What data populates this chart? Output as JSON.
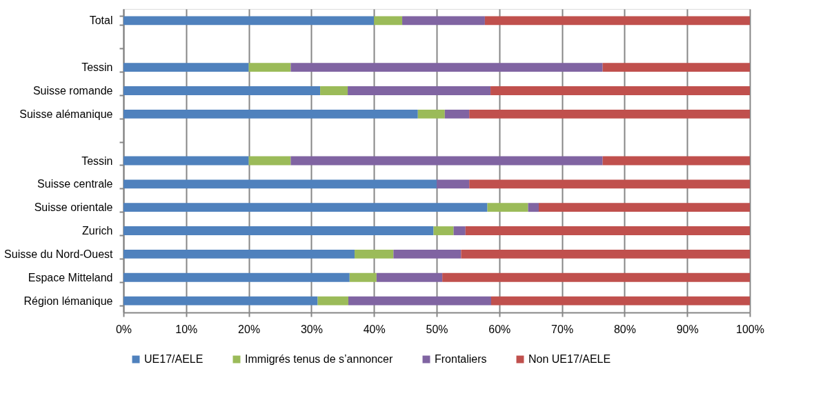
{
  "chart_data": {
    "type": "bar",
    "orientation": "horizontal",
    "stacked": true,
    "categories": [
      "Total",
      null,
      "Tessin",
      "Suisse romande",
      "Suisse alémanique",
      null,
      "Tessin",
      "Suisse centrale",
      "Suisse orientale",
      "Zurich",
      "Suisse du Nord-Ouest",
      "Espace Mitteland",
      "Région lémanique"
    ],
    "series": [
      {
        "name": "UE17/AELE",
        "color": "#4f81bd",
        "values": [
          40,
          null,
          20,
          31.4,
          47,
          null,
          20,
          50,
          58.1,
          49.5,
          36.9,
          36.1,
          31
        ]
      },
      {
        "name": "Immigrés tenus de s’annoncer",
        "color": "#9bbb59",
        "values": [
          4.5,
          null,
          6.7,
          4.4,
          4.3,
          null,
          6.7,
          0,
          6.5,
          3.2,
          6.2,
          4.3,
          4.9
        ]
      },
      {
        "name": "Frontaliers",
        "color": "#8064a2",
        "values": [
          13.2,
          null,
          49.8,
          22.8,
          3.9,
          null,
          49.8,
          5.2,
          1.7,
          1.9,
          10.8,
          10.5,
          22.8
        ]
      },
      {
        "name": "Non UE17/AELE",
        "color": "#c0504d",
        "values": [
          42.3,
          null,
          23.5,
          41.4,
          44.8,
          null,
          23.5,
          44.8,
          33.7,
          45.4,
          46.1,
          49.1,
          41.3
        ]
      }
    ],
    "xlim": [
      0,
      100
    ],
    "xticks": [
      {
        "value": 0,
        "label": "0%"
      },
      {
        "value": 10,
        "label": "10%"
      },
      {
        "value": 20,
        "label": "20%"
      },
      {
        "value": 30,
        "label": "30%"
      },
      {
        "value": 40,
        "label": "40%"
      },
      {
        "value": 50,
        "label": "50%"
      },
      {
        "value": 60,
        "label": "60%"
      },
      {
        "value": 70,
        "label": "70%"
      },
      {
        "value": 80,
        "label": "80%"
      },
      {
        "value": 90,
        "label": "90%"
      },
      {
        "value": 100,
        "label": "100%"
      }
    ],
    "grid": "x",
    "legend": "bottom"
  }
}
